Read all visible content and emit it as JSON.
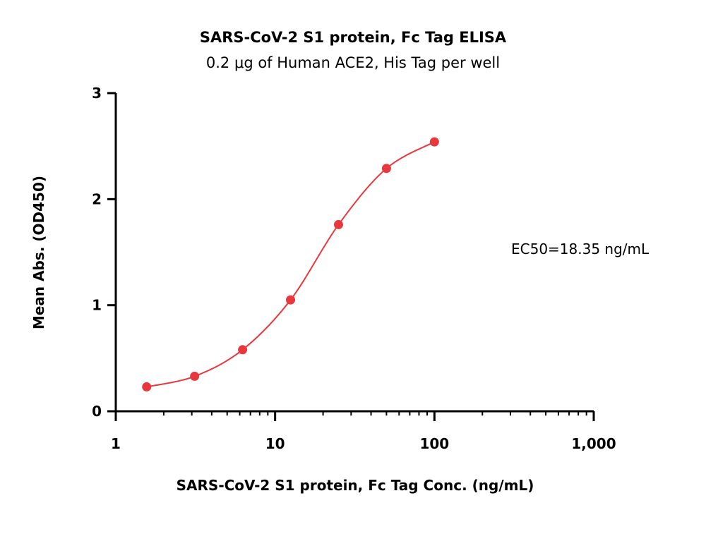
{
  "chart_data": {
    "type": "scatter",
    "title": "SARS-CoV-2 S1 protein, Fc Tag ELISA",
    "subtitle": "0.2 μg of Human ACE2, His Tag per well",
    "xlabel": "SARS-CoV-2 S1 protein, Fc Tag Conc. (ng/mL)",
    "ylabel": "Mean Abs. (OD450)",
    "xscale": "log",
    "xlim": [
      1,
      1000
    ],
    "ylim": [
      0,
      3
    ],
    "x_ticks": [
      1,
      10,
      100,
      1000
    ],
    "x_tick_labels": [
      "1",
      "10",
      "100",
      "1,000"
    ],
    "y_ticks": [
      0,
      1,
      2,
      3
    ],
    "y_tick_labels": [
      "0",
      "1",
      "2",
      "3"
    ],
    "grid": false,
    "series": [
      {
        "x": [
          1.5625,
          3.125,
          6.25,
          12.5,
          25,
          50,
          100
        ],
        "y": [
          0.23,
          0.33,
          0.58,
          1.05,
          1.76,
          2.29,
          2.54
        ],
        "color": "#e8383d",
        "fit": "sigmoidal"
      }
    ],
    "annotation": "EC50=18.35  ng/mL"
  }
}
